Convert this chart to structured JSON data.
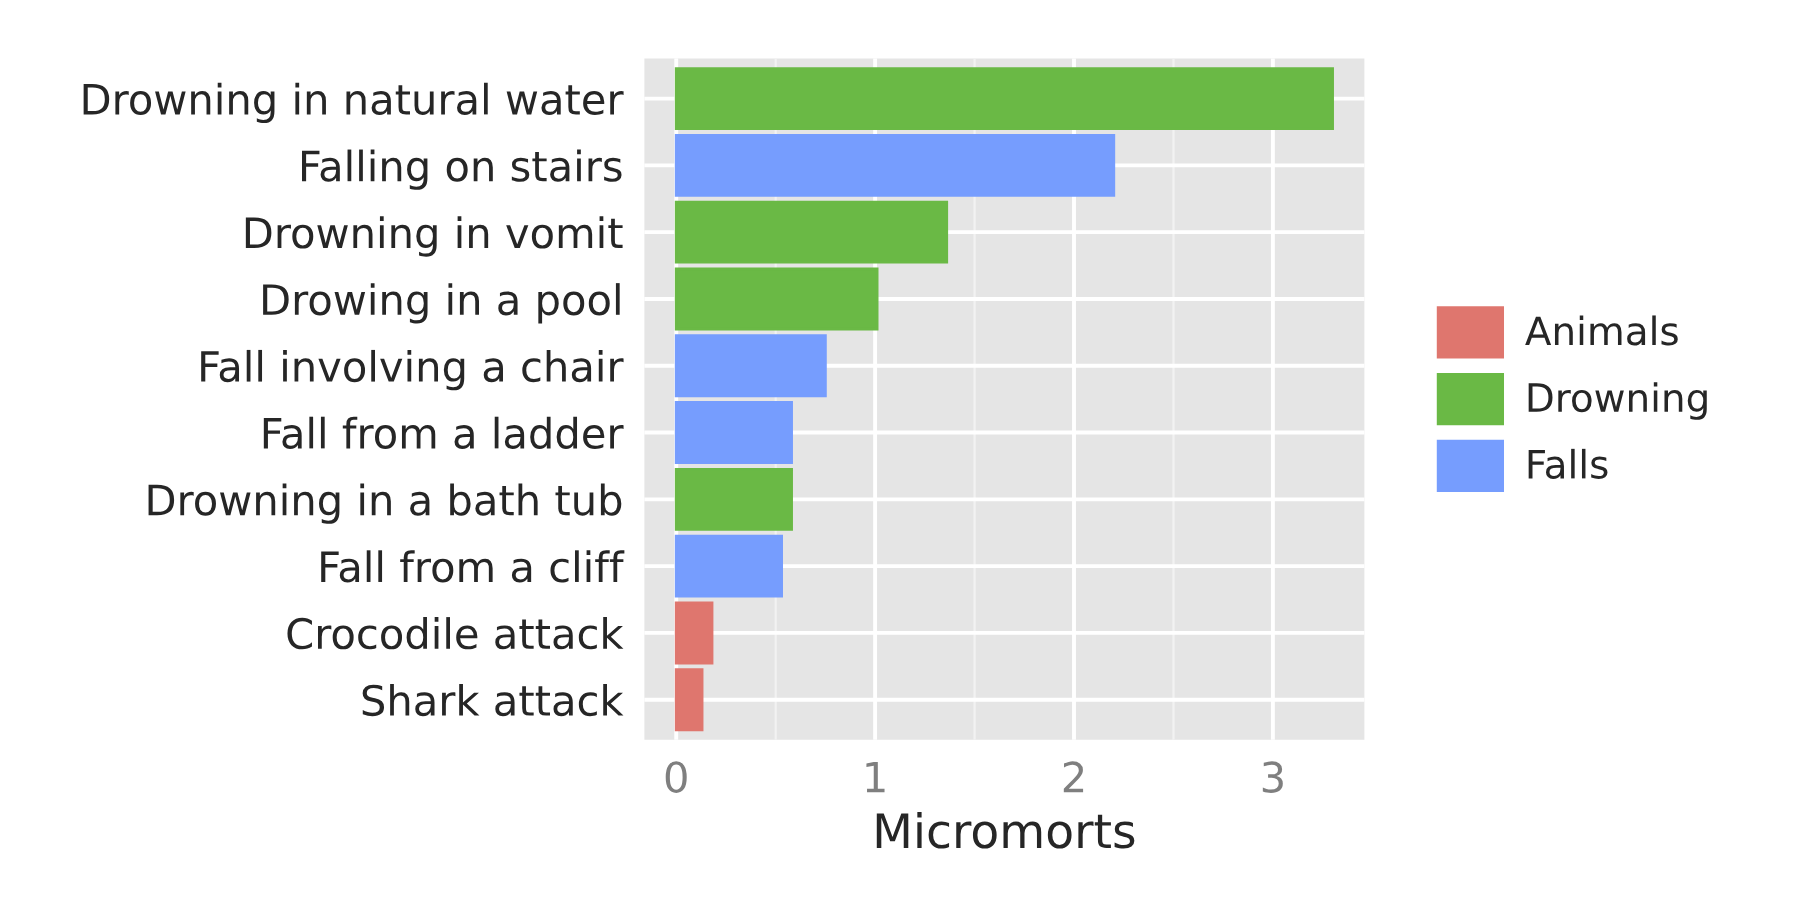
{
  "chart_data": {
    "type": "bar",
    "orientation": "horizontal",
    "xlabel": "Micromorts",
    "categories": [
      "Drowning in natural water",
      "Falling on stairs",
      "Drowning in vomit",
      "Drowing in a pool",
      "Fall involving a chair",
      "Fall from a ladder",
      "Drowning in a bath tub",
      "Fall from a cliff",
      "Crocodile attack",
      "Shark attack"
    ],
    "series": [
      {
        "name": "Animals",
        "color": "#df766e",
        "values": [
          null,
          null,
          null,
          null,
          null,
          null,
          null,
          null,
          0.18,
          0.13
        ]
      },
      {
        "name": "Drowning",
        "color": "#6ab945",
        "values": [
          3.3,
          null,
          1.36,
          1.01,
          null,
          null,
          0.58,
          null,
          null,
          null
        ]
      },
      {
        "name": "Falls",
        "color": "#769dfe",
        "values": [
          null,
          2.2,
          null,
          null,
          0.75,
          0.58,
          null,
          0.53,
          null,
          null
        ]
      }
    ],
    "xlim": [
      -0.16,
      3.46
    ],
    "xticks": [
      0,
      1,
      2,
      3
    ],
    "grid": true,
    "legend": "right"
  }
}
